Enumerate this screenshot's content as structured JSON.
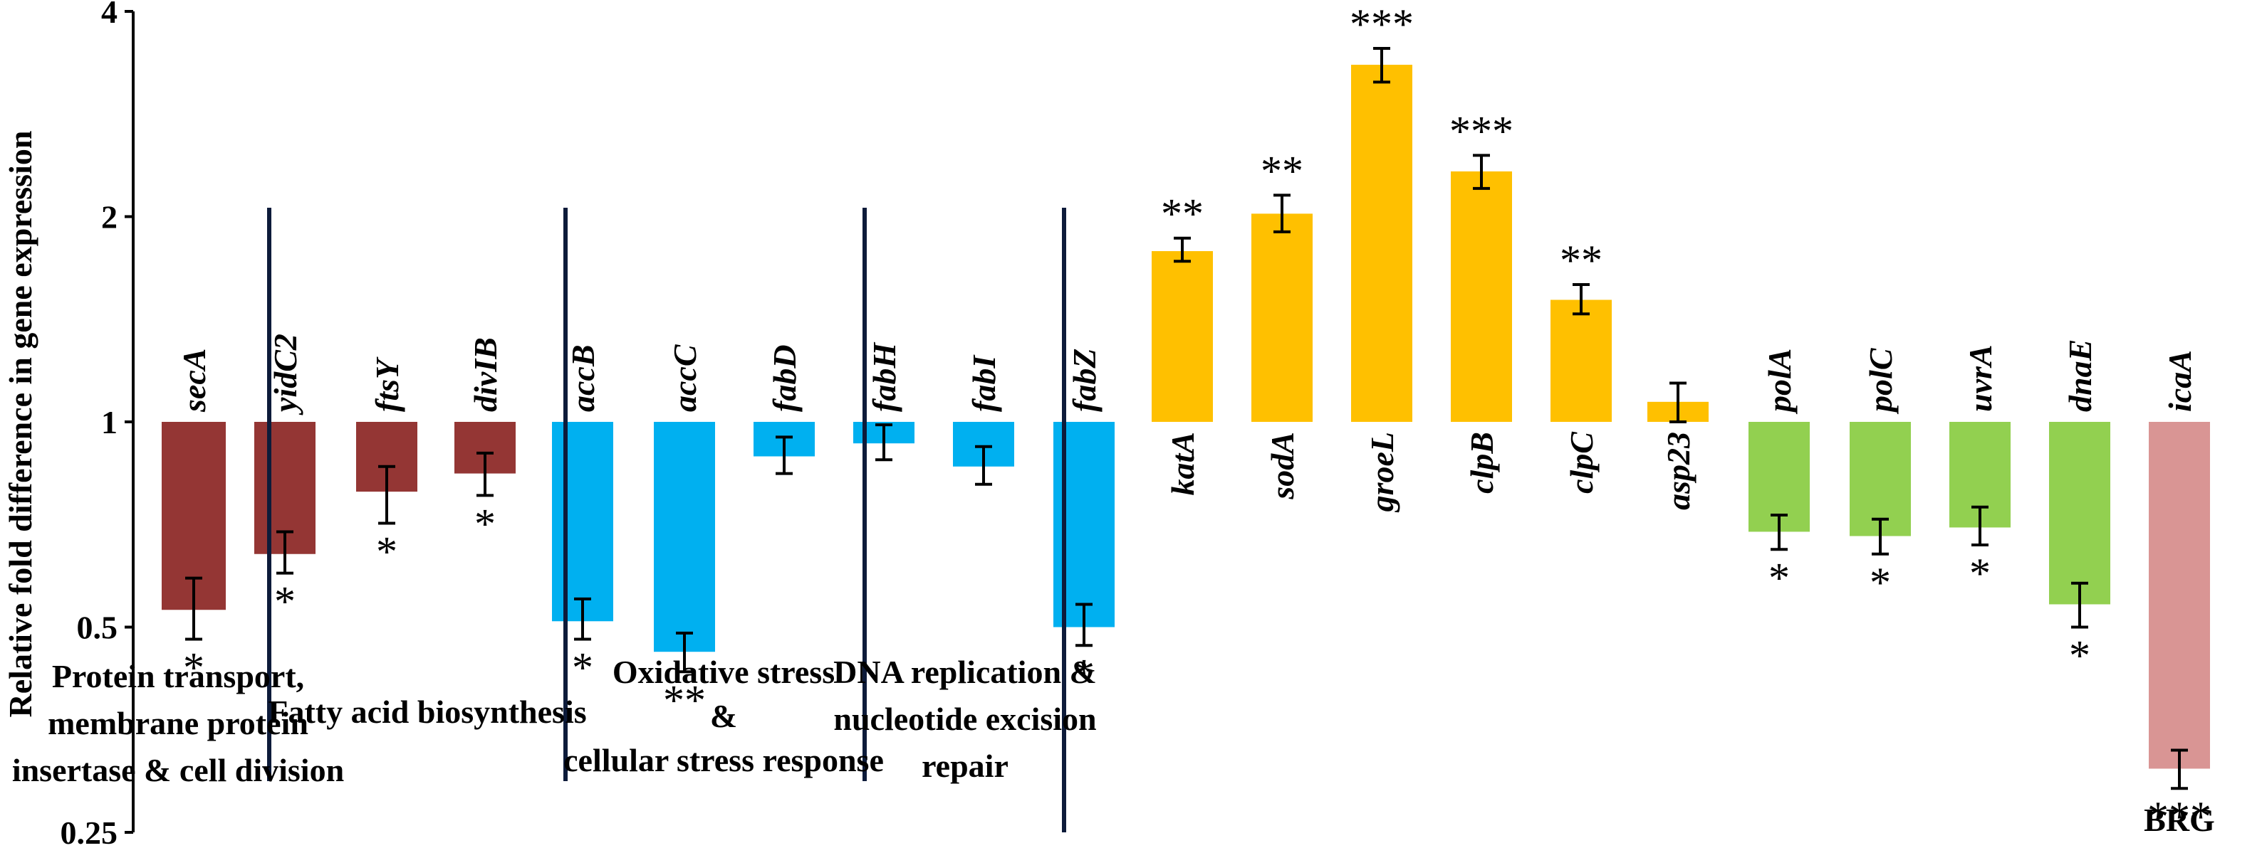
{
  "chart_data": {
    "type": "bar",
    "scale": "log2",
    "ylabel": "Relative fold difference in gene expression",
    "ylim": [
      0.25,
      4
    ],
    "yticks": [
      0.25,
      0.5,
      1,
      2,
      4
    ],
    "ytick_labels": [
      "0.25",
      "0.5",
      "1",
      "2",
      "4"
    ],
    "colors": {
      "protein": "#943634",
      "fatty": "#00b0f0",
      "oxidative": "#ffc000",
      "dna": "#92d050",
      "brg": "#d99594"
    },
    "groups": [
      {
        "key": "protein",
        "label_lines": [
          "Protein transport,",
          "membrane protein",
          "insertase & cell division"
        ]
      },
      {
        "key": "fatty",
        "label_lines": [
          "Fatty acid biosynthesis"
        ]
      },
      {
        "key": "oxidative",
        "label_lines": [
          "Oxidative stress",
          "&",
          "cellular stress response"
        ]
      },
      {
        "key": "dna",
        "label_lines": [
          "DNA replication &",
          "nucleotide excision",
          "repair"
        ]
      },
      {
        "key": "brg",
        "label_lines": [
          "BRG"
        ]
      }
    ],
    "bars": [
      {
        "gene": "secA",
        "group": "protein",
        "value": 0.53,
        "err_lo": 0.48,
        "err_hi": 0.59,
        "sig": "*"
      },
      {
        "gene": "yidC2",
        "group": "protein",
        "value": 0.64,
        "err_lo": 0.6,
        "err_hi": 0.69,
        "sig": "*"
      },
      {
        "gene": "ftsY",
        "group": "protein",
        "value": 0.79,
        "err_lo": 0.71,
        "err_hi": 0.86,
        "sig": "*"
      },
      {
        "gene": "divIB",
        "group": "protein",
        "value": 0.84,
        "err_lo": 0.78,
        "err_hi": 0.9,
        "sig": "*"
      },
      {
        "gene": "accB",
        "group": "fatty",
        "value": 0.51,
        "err_lo": 0.48,
        "err_hi": 0.55,
        "sig": "*"
      },
      {
        "gene": "accC",
        "group": "fatty",
        "value": 0.46,
        "err_lo": 0.43,
        "err_hi": 0.49,
        "sig": "**"
      },
      {
        "gene": "fabD",
        "group": "fatty",
        "value": 0.89,
        "err_lo": 0.84,
        "err_hi": 0.95,
        "sig": ""
      },
      {
        "gene": "fabH",
        "group": "fatty",
        "value": 0.93,
        "err_lo": 0.88,
        "err_hi": 0.99,
        "sig": ""
      },
      {
        "gene": "fabI",
        "group": "fatty",
        "value": 0.86,
        "err_lo": 0.81,
        "err_hi": 0.92,
        "sig": ""
      },
      {
        "gene": "fabZ",
        "group": "fatty",
        "value": 0.5,
        "err_lo": 0.47,
        "err_hi": 0.54,
        "sig": "*"
      },
      {
        "gene": "katA",
        "group": "oxidative",
        "value": 1.78,
        "err_lo": 1.72,
        "err_hi": 1.86,
        "sig": "**"
      },
      {
        "gene": "sodA",
        "group": "oxidative",
        "value": 2.02,
        "err_lo": 1.9,
        "err_hi": 2.15,
        "sig": "**"
      },
      {
        "gene": "groeL",
        "group": "oxidative",
        "value": 3.34,
        "err_lo": 3.15,
        "err_hi": 3.53,
        "sig": "***"
      },
      {
        "gene": "clpB",
        "group": "oxidative",
        "value": 2.33,
        "err_lo": 2.2,
        "err_hi": 2.46,
        "sig": "***"
      },
      {
        "gene": "clpC",
        "group": "oxidative",
        "value": 1.51,
        "err_lo": 1.44,
        "err_hi": 1.59,
        "sig": "**"
      },
      {
        "gene": "asp23",
        "group": "oxidative",
        "value": 1.07,
        "err_lo": 1.0,
        "err_hi": 1.14,
        "sig": ""
      },
      {
        "gene": "polA",
        "group": "dna",
        "value": 0.69,
        "err_lo": 0.65,
        "err_hi": 0.73,
        "sig": "*"
      },
      {
        "gene": "polC",
        "group": "dna",
        "value": 0.68,
        "err_lo": 0.64,
        "err_hi": 0.72,
        "sig": "*"
      },
      {
        "gene": "uvrA",
        "group": "dna",
        "value": 0.7,
        "err_lo": 0.66,
        "err_hi": 0.75,
        "sig": "*"
      },
      {
        "gene": "dnaE",
        "group": "dna",
        "value": 0.54,
        "err_lo": 0.5,
        "err_hi": 0.58,
        "sig": "*"
      },
      {
        "gene": "icaA",
        "group": "brg",
        "value": 0.31,
        "err_lo": 0.29,
        "err_hi": 0.33,
        "sig": "***"
      }
    ]
  }
}
